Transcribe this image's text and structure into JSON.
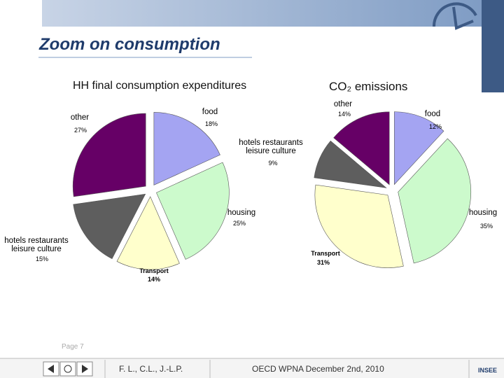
{
  "slide": {
    "title": "Zoom on consumption",
    "page": "Page 7",
    "authors": "F. L., C.L., J.-L.P.",
    "event": "OECD WPNA December 2nd, 2010",
    "logo": "INSEE"
  },
  "chart_data": [
    {
      "type": "pie",
      "title": "HH final consumption expenditures",
      "categories": [
        "food",
        "housing",
        "Transport",
        "hotels restaurants leisure culture",
        "other"
      ],
      "values": [
        18,
        25,
        14,
        15,
        27
      ],
      "value_labels": [
        "18%",
        "25%",
        "14%",
        "15%",
        "27%"
      ],
      "colors": [
        "#a4a4f2",
        "#ccfacc",
        "#ffffcc",
        "#5e5e5e",
        "#660066"
      ]
    },
    {
      "type": "pie",
      "title": "CO₂ emissions",
      "categories": [
        "food",
        "housing",
        "Transport",
        "hotels restaurants leisure culture",
        "other"
      ],
      "values": [
        12,
        35,
        31,
        9,
        14
      ],
      "value_labels": [
        "12%",
        "35%",
        "31%",
        "9%",
        "14%"
      ],
      "colors": [
        "#a4a4f2",
        "#ccfacc",
        "#ffffcc",
        "#5e5e5e",
        "#660066"
      ]
    }
  ]
}
